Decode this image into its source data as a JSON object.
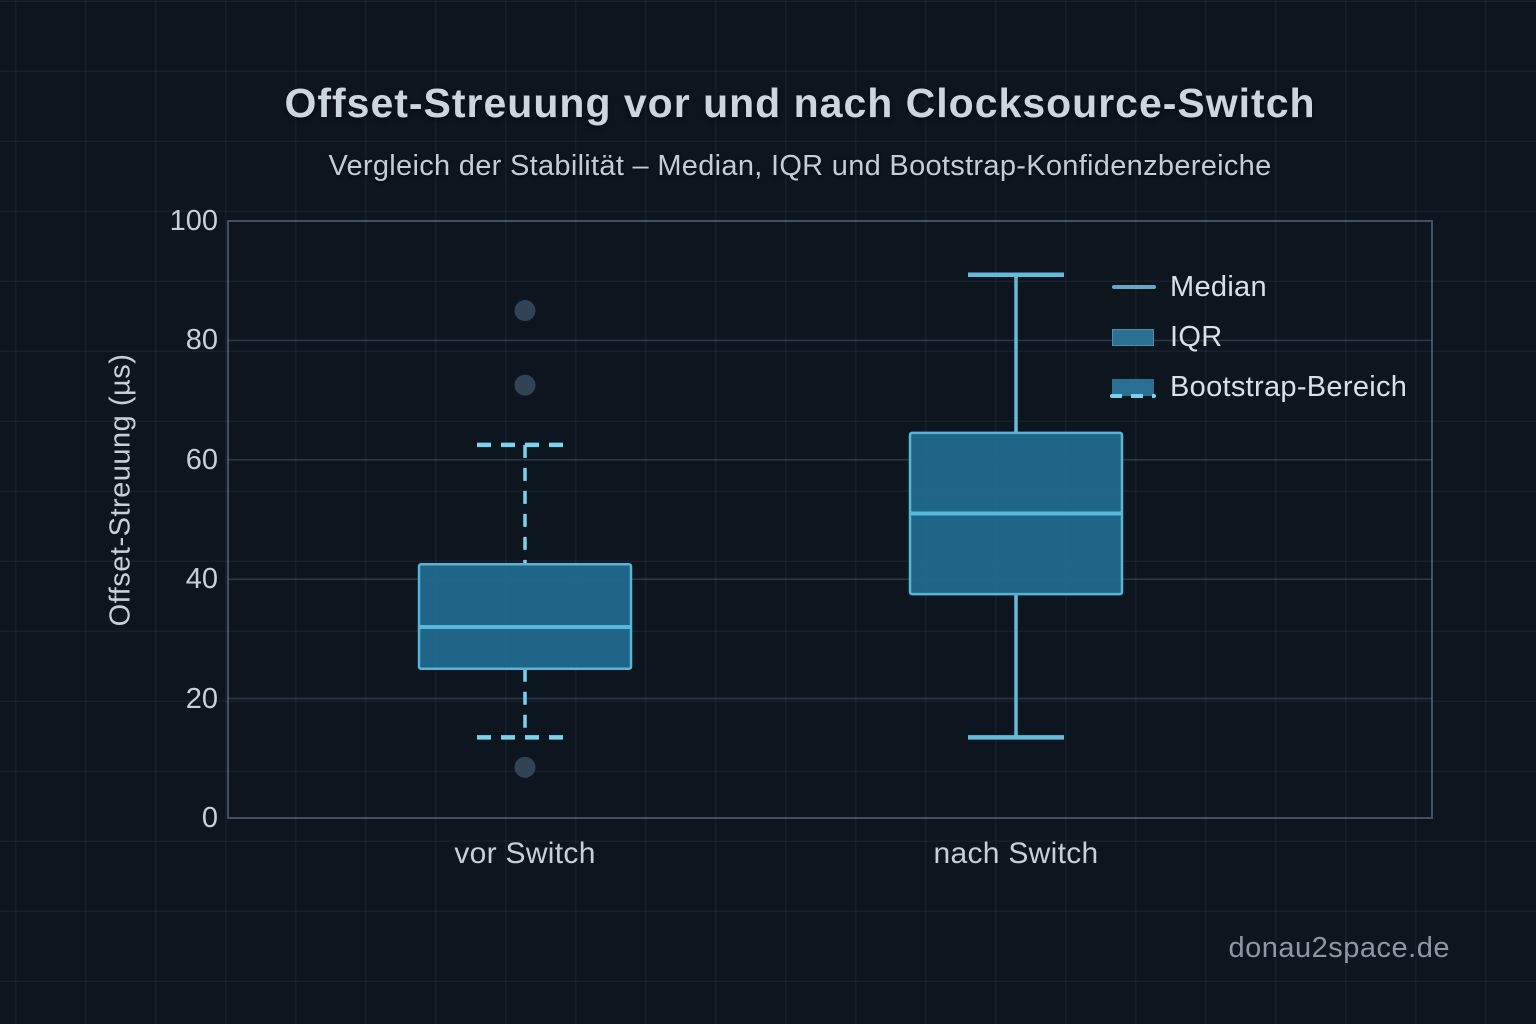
{
  "page": {
    "watermark": "donau2space.de"
  },
  "chart_data": {
    "type": "boxplot",
    "title": "Offset-Streuung vor und nach Clocksource-Switch",
    "subtitle": "Vergleich der Stabilität – Median, IQR und Bootstrap-Konfidenzbereiche",
    "ylabel": "Offset-Streuung (µs)",
    "xlabel": "",
    "ylim": [
      0,
      100
    ],
    "yticks": [
      0,
      20,
      40,
      60,
      80,
      100
    ],
    "grid": true,
    "categories": [
      "vor Switch",
      "nach Switch"
    ],
    "legend": {
      "position": "upper right",
      "items": [
        "Median",
        "IQR",
        "Bootstrap-Bereich"
      ]
    },
    "boxes": [
      {
        "category": "vor Switch",
        "whisker_low": 13.5,
        "q1": 25,
        "median": 32,
        "q3": 42.5,
        "whisker_high": 62.5,
        "whisker_style": "dashed",
        "outliers": [
          8.5,
          72.5,
          85
        ]
      },
      {
        "category": "nach Switch",
        "whisker_low": 13.5,
        "q1": 37.5,
        "median": 51,
        "q3": 64.5,
        "whisker_high": 91,
        "whisker_style": "solid",
        "outliers": []
      }
    ]
  },
  "colors": {
    "background": "#0d151f",
    "grid_line": "rgba(140,175,200,0.22)",
    "frame": "rgba(150,180,205,0.38)",
    "box_fill": "#20698c",
    "box_border": "#59b5d8",
    "median_line": "#57b9db",
    "whisker_solid": "#63bcdc",
    "whisker_dashed": "#7cd2ec",
    "outlier": "#314456",
    "accent": "#57b9db"
  }
}
